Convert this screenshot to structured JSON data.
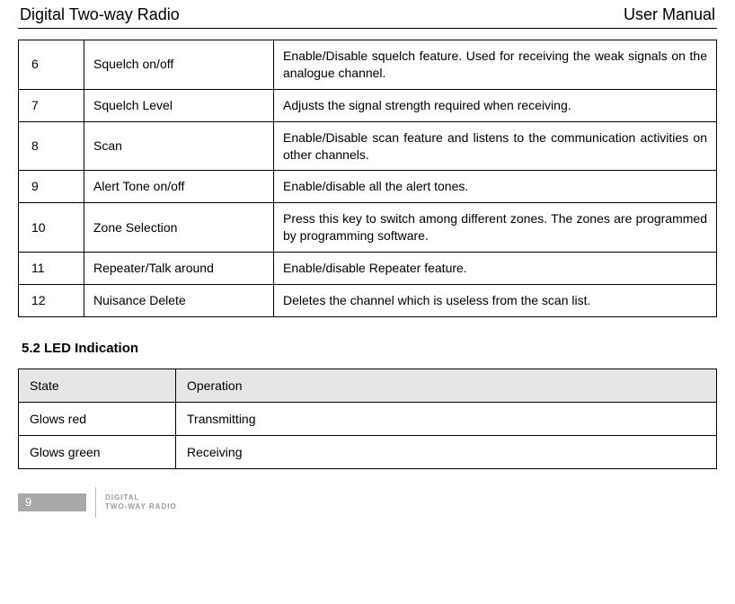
{
  "header": {
    "left": "Digital Two-way Radio",
    "right": "User Manual"
  },
  "feature_rows": [
    {
      "num": "6",
      "name": "Squelch on/off",
      "desc": "Enable/Disable squelch feature. Used for receiving the weak signals on the analogue channel."
    },
    {
      "num": "7",
      "name": "Squelch Level",
      "desc": "Adjusts the signal strength required when receiving."
    },
    {
      "num": "8",
      "name": "Scan",
      "desc": "Enable/Disable scan feature and listens to the communication activities on other channels."
    },
    {
      "num": "9",
      "name": "Alert Tone on/off",
      "desc": "Enable/disable all the alert tones."
    },
    {
      "num": "10",
      "name": "Zone Selection",
      "desc": "Press this key to switch among different zones. The zones are programmed by programming software."
    },
    {
      "num": "11",
      "name": "Repeater/Talk around",
      "desc": "Enable/disable Repeater feature."
    },
    {
      "num": "12",
      "name": "Nuisance Delete",
      "desc": "Deletes the channel which is useless from the scan list."
    }
  ],
  "section_heading": "5.2    LED Indication",
  "led_header": {
    "state": "State",
    "operation": "Operation"
  },
  "led_rows": [
    {
      "state": "Glows red",
      "operation": "Transmitting"
    },
    {
      "state": "Glows green",
      "operation": "Receiving"
    }
  ],
  "footer": {
    "page": "9",
    "brand_line1": "DIGITAL",
    "brand_line2": "TWO-WAY RADIO"
  }
}
